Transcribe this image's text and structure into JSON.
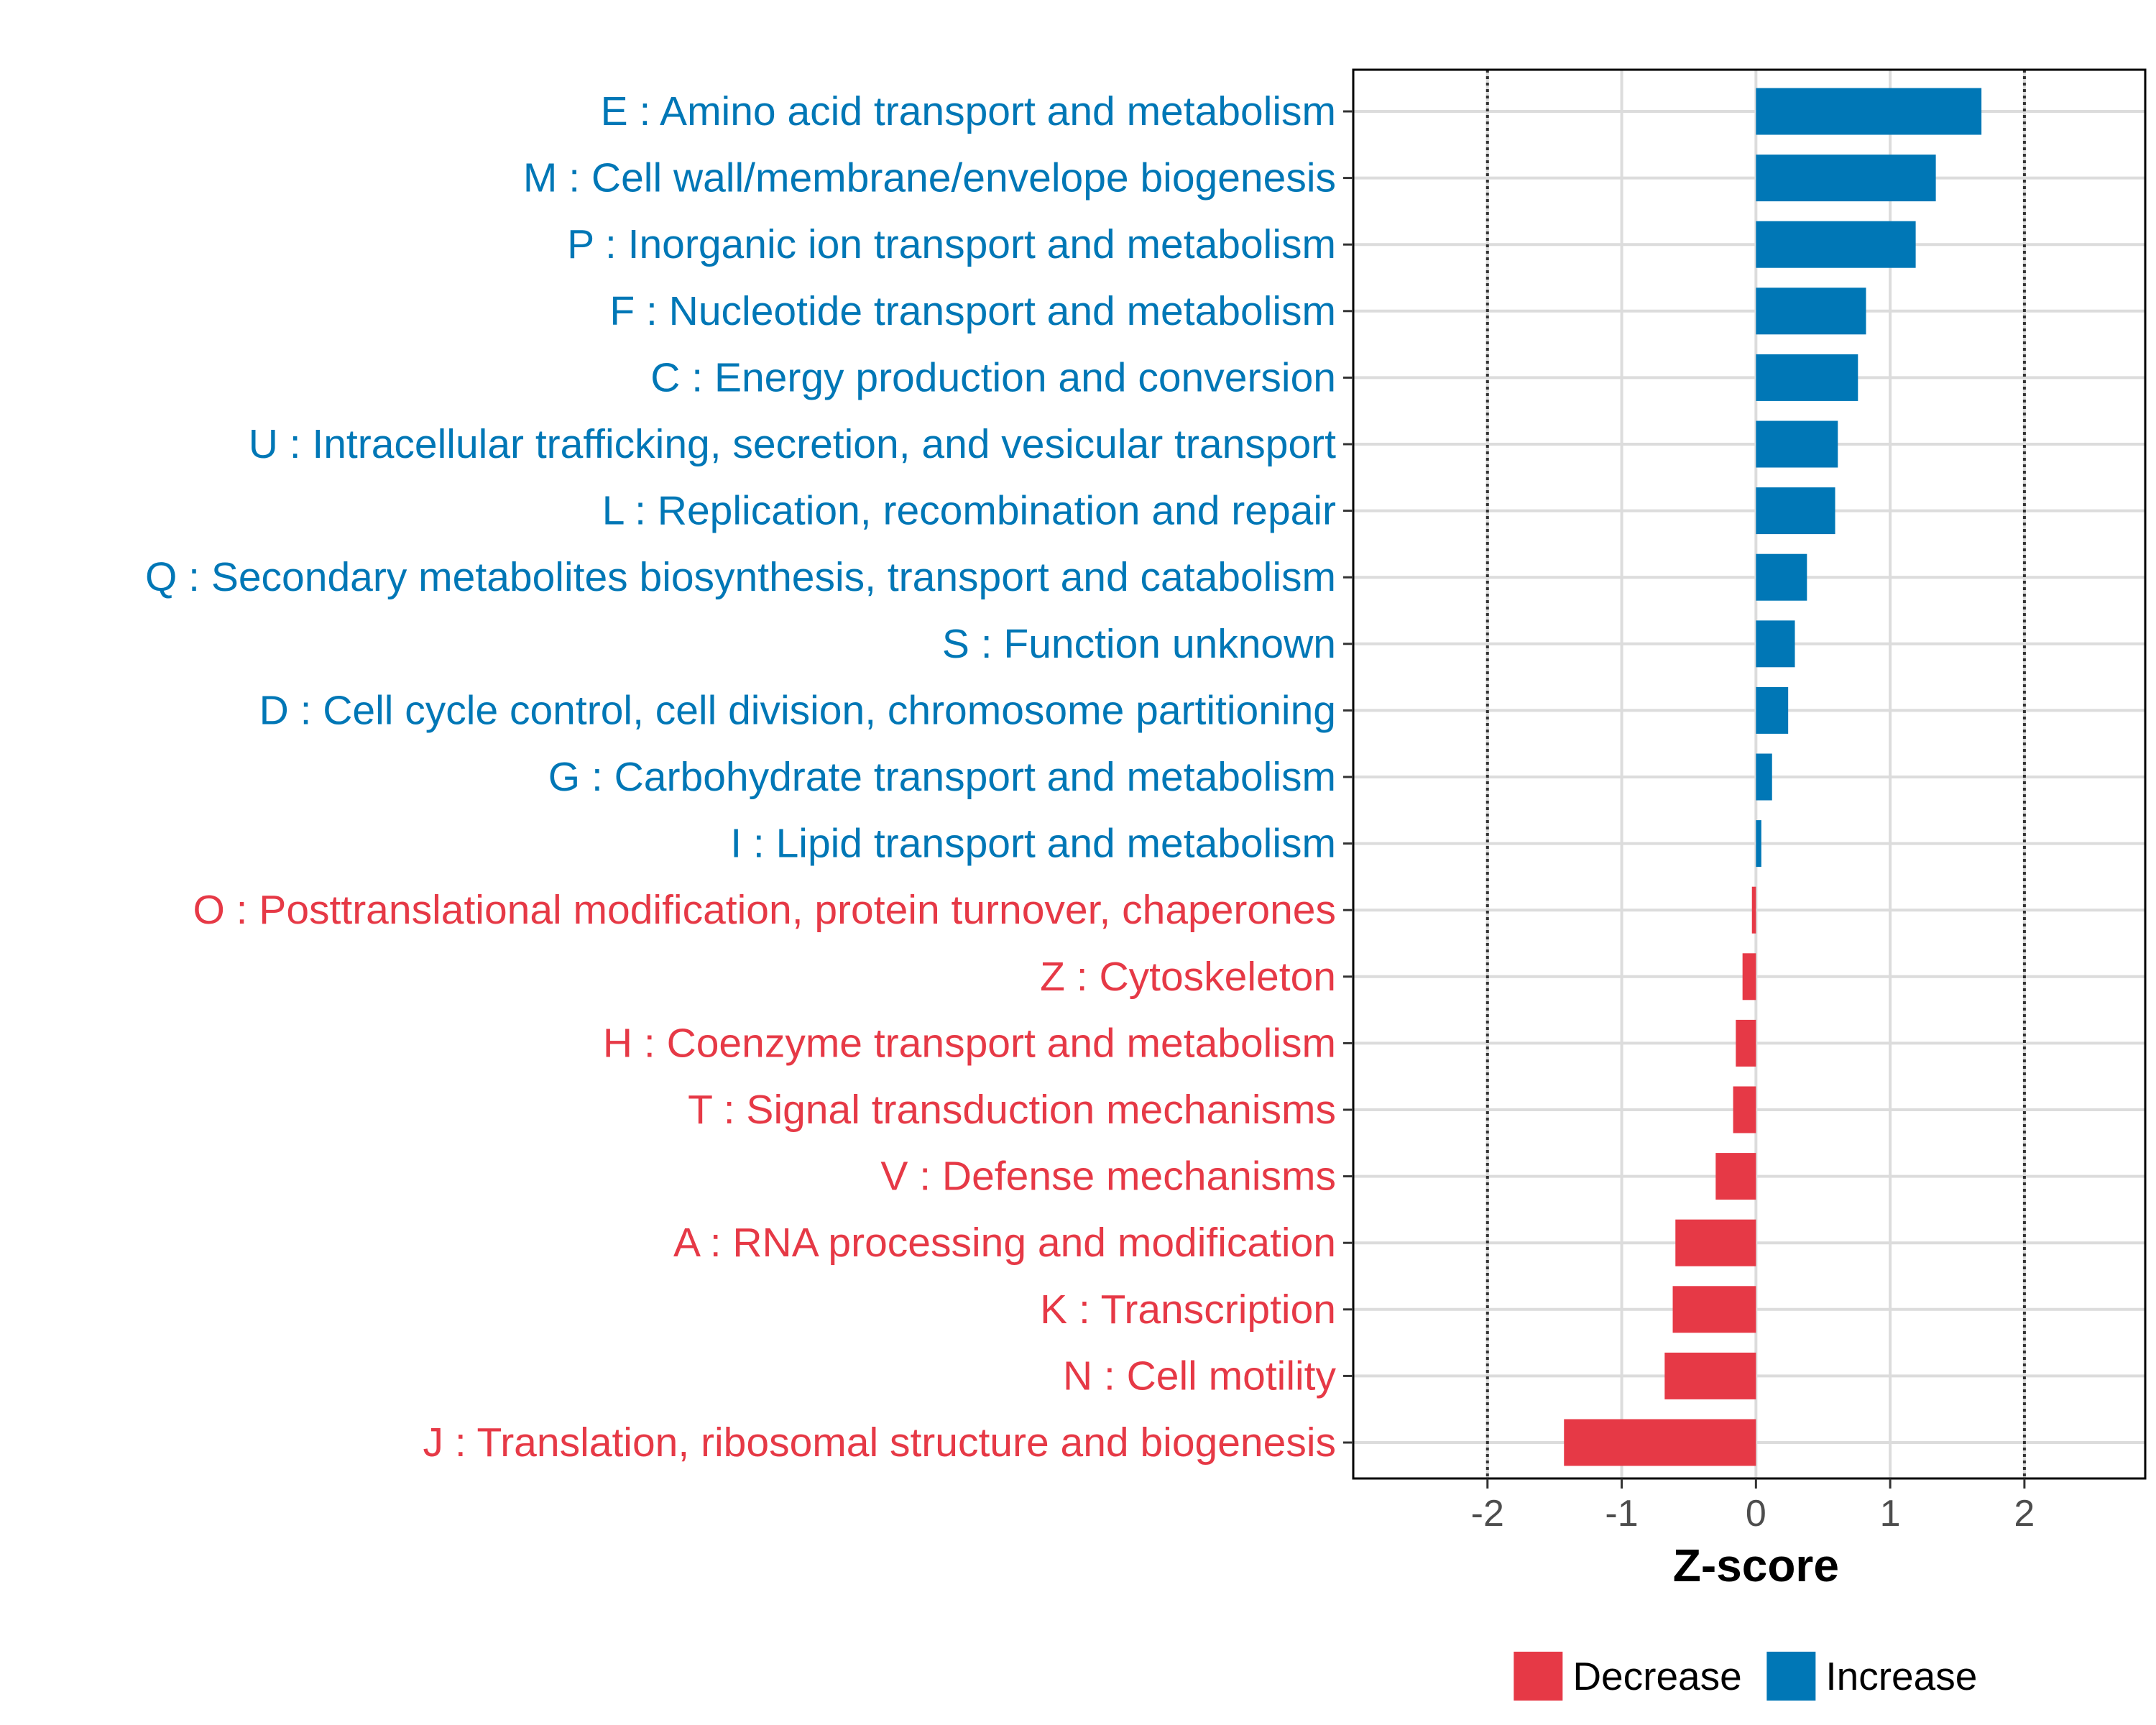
{
  "chart_data": {
    "type": "bar",
    "orientation": "horizontal",
    "title": "",
    "xlabel": "Z-score",
    "ylabel": "",
    "xlim": [
      -3.0,
      2.9
    ],
    "xticks": [
      {
        "value": -2,
        "label": "-2"
      },
      {
        "value": -1,
        "label": "-1"
      },
      {
        "value": 0,
        "label": "0"
      },
      {
        "value": 1,
        "label": "1"
      },
      {
        "value": 2,
        "label": "2"
      }
    ],
    "reference_lines": [
      -2,
      2
    ],
    "grid": true,
    "legend_position": "bottom",
    "colors": {
      "Decrease": "#E63946",
      "Increase": "#0077B6"
    },
    "legend": [
      {
        "name": "Decrease",
        "color": "#E63946"
      },
      {
        "name": "Increase",
        "color": "#0077B6"
      }
    ],
    "categories": [
      {
        "label": "E : Amino acid transport and metabolism",
        "value": 1.68,
        "group": "Increase"
      },
      {
        "label": "M : Cell wall/membrane/envelope biogenesis",
        "value": 1.34,
        "group": "Increase"
      },
      {
        "label": "P : Inorganic ion transport and metabolism",
        "value": 1.19,
        "group": "Increase"
      },
      {
        "label": "F : Nucleotide transport and metabolism",
        "value": 0.82,
        "group": "Increase"
      },
      {
        "label": "C : Energy production and conversion",
        "value": 0.76,
        "group": "Increase"
      },
      {
        "label": "U : Intracellular trafficking, secretion, and vesicular transport",
        "value": 0.61,
        "group": "Increase"
      },
      {
        "label": "L : Replication, recombination and repair",
        "value": 0.59,
        "group": "Increase"
      },
      {
        "label": "Q : Secondary metabolites biosynthesis, transport and catabolism",
        "value": 0.38,
        "group": "Increase"
      },
      {
        "label": "S : Function unknown",
        "value": 0.29,
        "group": "Increase"
      },
      {
        "label": "D : Cell cycle control, cell division, chromosome partitioning",
        "value": 0.24,
        "group": "Increase"
      },
      {
        "label": "G : Carbohydrate transport and metabolism",
        "value": 0.12,
        "group": "Increase"
      },
      {
        "label": "I : Lipid transport and metabolism",
        "value": 0.04,
        "group": "Increase"
      },
      {
        "label": "O : Posttranslational modification, protein turnover, chaperones",
        "value": -0.03,
        "group": "Decrease"
      },
      {
        "label": "Z : Cytoskeleton",
        "value": -0.1,
        "group": "Decrease"
      },
      {
        "label": "H : Coenzyme transport and metabolism",
        "value": -0.15,
        "group": "Decrease"
      },
      {
        "label": "T : Signal transduction mechanisms",
        "value": -0.17,
        "group": "Decrease"
      },
      {
        "label": "V : Defense mechanisms",
        "value": -0.3,
        "group": "Decrease"
      },
      {
        "label": "A : RNA processing and modification",
        "value": -0.6,
        "group": "Decrease"
      },
      {
        "label": "K : Transcription",
        "value": -0.62,
        "group": "Decrease"
      },
      {
        "label": "N : Cell motility",
        "value": -0.68,
        "group": "Decrease"
      },
      {
        "label": "J : Translation, ribosomal structure and biogenesis",
        "value": -1.43,
        "group": "Decrease"
      }
    ]
  }
}
